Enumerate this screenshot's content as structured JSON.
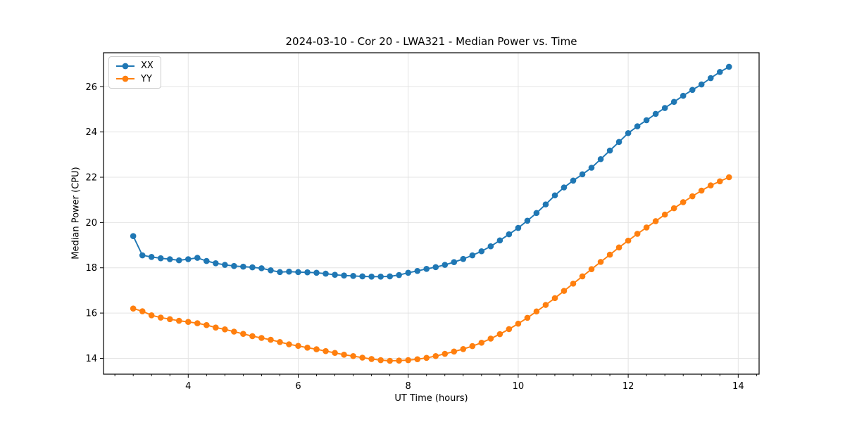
{
  "chart_data": {
    "type": "line",
    "title": "2024-03-10 - Cor 20 - LWA321 - Median Power vs. Time",
    "xlabel": "UT Time (hours)",
    "ylabel": "Median Power (CPU)",
    "xlim": [
      2.46,
      14.38
    ],
    "ylim": [
      13.3,
      27.5
    ],
    "xticks": [
      4,
      6,
      8,
      10,
      12,
      14
    ],
    "yticks": [
      14,
      16,
      18,
      20,
      22,
      24,
      26
    ],
    "x_minor_step": 0.33333,
    "grid": true,
    "legend_position": "upper-left",
    "marker": "circle",
    "x": [
      3.0,
      3.167,
      3.333,
      3.5,
      3.667,
      3.833,
      4.0,
      4.167,
      4.333,
      4.5,
      4.667,
      4.833,
      5.0,
      5.167,
      5.333,
      5.5,
      5.667,
      5.833,
      6.0,
      6.167,
      6.333,
      6.5,
      6.667,
      6.833,
      7.0,
      7.167,
      7.333,
      7.5,
      7.667,
      7.833,
      8.0,
      8.167,
      8.333,
      8.5,
      8.667,
      8.833,
      9.0,
      9.167,
      9.333,
      9.5,
      9.667,
      9.833,
      10.0,
      10.167,
      10.333,
      10.5,
      10.667,
      10.833,
      11.0,
      11.167,
      11.333,
      11.5,
      11.667,
      11.833,
      12.0,
      12.167,
      12.333,
      12.5,
      12.667,
      12.833,
      13.0,
      13.167,
      13.333,
      13.5,
      13.667,
      13.833
    ],
    "series": [
      {
        "name": "XX",
        "color": "#1f77b4",
        "values": [
          19.4,
          18.55,
          18.48,
          18.42,
          18.38,
          18.33,
          18.38,
          18.44,
          18.3,
          18.2,
          18.13,
          18.08,
          18.05,
          18.02,
          17.98,
          17.89,
          17.81,
          17.83,
          17.81,
          17.8,
          17.78,
          17.74,
          17.69,
          17.66,
          17.64,
          17.62,
          17.61,
          17.61,
          17.62,
          17.68,
          17.78,
          17.86,
          17.95,
          18.03,
          18.13,
          18.25,
          18.39,
          18.55,
          18.73,
          18.95,
          19.21,
          19.48,
          19.76,
          20.08,
          20.42,
          20.8,
          21.2,
          21.55,
          21.85,
          22.13,
          22.42,
          22.8,
          23.18,
          23.56,
          23.95,
          24.25,
          24.52,
          24.8,
          25.06,
          25.33,
          25.6,
          25.86,
          26.1,
          26.38,
          26.65,
          26.88
        ]
      },
      {
        "name": "YY",
        "color": "#ff7f0e",
        "values": [
          16.2,
          16.08,
          15.9,
          15.8,
          15.73,
          15.66,
          15.61,
          15.55,
          15.47,
          15.36,
          15.28,
          15.18,
          15.08,
          14.98,
          14.9,
          14.82,
          14.72,
          14.62,
          14.55,
          14.47,
          14.4,
          14.32,
          14.24,
          14.16,
          14.1,
          14.03,
          13.97,
          13.92,
          13.89,
          13.9,
          13.92,
          13.96,
          14.02,
          14.1,
          14.2,
          14.3,
          14.41,
          14.54,
          14.69,
          14.87,
          15.07,
          15.29,
          15.53,
          15.79,
          16.07,
          16.36,
          16.66,
          16.98,
          17.3,
          17.62,
          17.94,
          18.26,
          18.58,
          18.9,
          19.2,
          19.5,
          19.78,
          20.06,
          20.35,
          20.63,
          20.9,
          21.16,
          21.41,
          21.64,
          21.82,
          22.0
        ]
      }
    ]
  },
  "style": {
    "grid_color": "#e4e4e4",
    "spine_color": "#000000",
    "tick_label_color": "#000000",
    "background": "#ffffff"
  }
}
